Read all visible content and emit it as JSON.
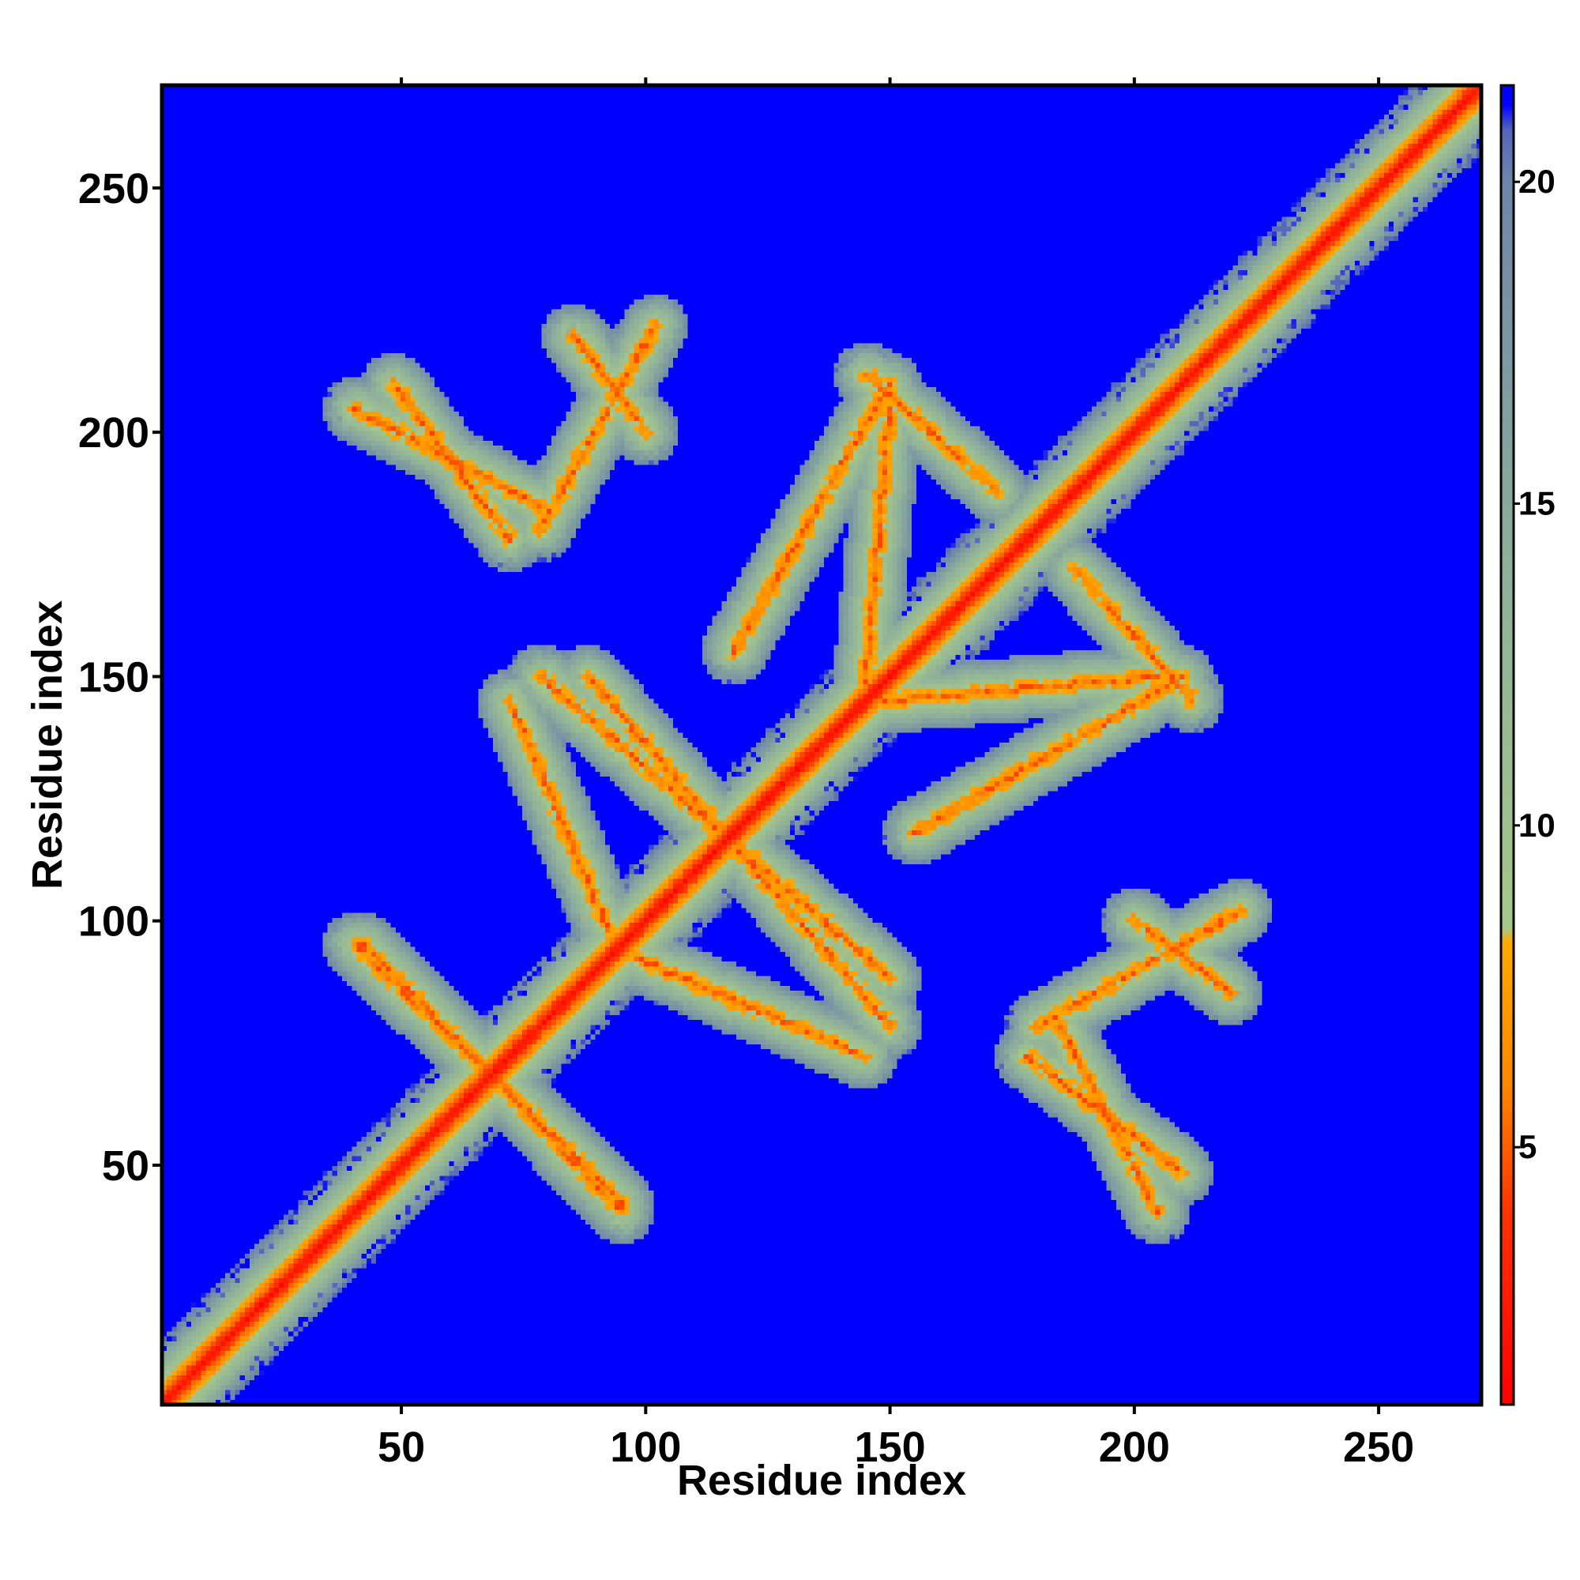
{
  "chart_data": {
    "type": "heatmap",
    "title": "",
    "xlabel": "Residue index",
    "ylabel": "Residue index",
    "xlim": [
      1,
      271
    ],
    "ylim": [
      1,
      271
    ],
    "x_ticks": [
      50,
      100,
      150,
      200,
      250
    ],
    "y_ticks": [
      50,
      100,
      150,
      200,
      250
    ],
    "x_tick_labels": [
      "50",
      "100",
      "150",
      "200",
      "250"
    ],
    "y_tick_labels": [
      "50",
      "100",
      "150",
      "200",
      "250"
    ],
    "n_residues": 271,
    "grid": false,
    "symmetric": true,
    "colorbar": {
      "range": [
        1,
        21.5
      ],
      "ticks": [
        5,
        10,
        15,
        20
      ],
      "tick_labels": [
        "5",
        "10",
        "15",
        "20"
      ],
      "stops": [
        {
          "value": 1,
          "color": "#ff0000"
        },
        {
          "value": 4,
          "color": "#ff3300"
        },
        {
          "value": 6,
          "color": "#ff8800"
        },
        {
          "value": 8.2,
          "color": "#ffaa00"
        },
        {
          "value": 8.4,
          "color": "#a6c78a"
        },
        {
          "value": 14,
          "color": "#8fb09a"
        },
        {
          "value": 20,
          "color": "#6f86a8"
        },
        {
          "value": 20.8,
          "color": "#5566bb"
        },
        {
          "value": 21.2,
          "color": "#0000ff"
        }
      ]
    },
    "background_value": 21.5,
    "background_color": "#0000ff",
    "diagonal_band": {
      "half_width": 14,
      "min_value": 2
    },
    "contact_bands": [
      {
        "x": [
          40,
          95
        ],
        "y": [
          95,
          42
        ],
        "label": "antiparallel"
      },
      {
        "x": [
          78,
          150
        ],
        "y": [
          150,
          88
        ],
        "label": "antiparallel"
      },
      {
        "x": [
          98,
          145
        ],
        "y": [
          92,
          72
        ],
        "label": "parallel"
      },
      {
        "x": [
          148,
          205
        ],
        "y": [
          145,
          150
        ],
        "label": "antiparallel"
      },
      {
        "x": [
          118,
          150
        ],
        "y": [
          155,
          210
        ],
        "label": "antiparallel"
      },
      {
        "x": [
          145,
          172
        ],
        "y": [
          212,
          188
        ],
        "label": "antiparallel"
      },
      {
        "x": [
          178,
          210
        ],
        "y": [
          72,
          48
        ],
        "label": "antiparallel"
      },
      {
        "x": [
          180,
          222
        ],
        "y": [
          78,
          102
        ],
        "label": "antiparallel"
      },
      {
        "x": [
          40,
          78
        ],
        "y": [
          205,
          185
        ],
        "label": "antiparallel"
      },
      {
        "x": [
          85,
          100
        ],
        "y": [
          220,
          200
        ],
        "label": "antiparallel"
      }
    ]
  }
}
